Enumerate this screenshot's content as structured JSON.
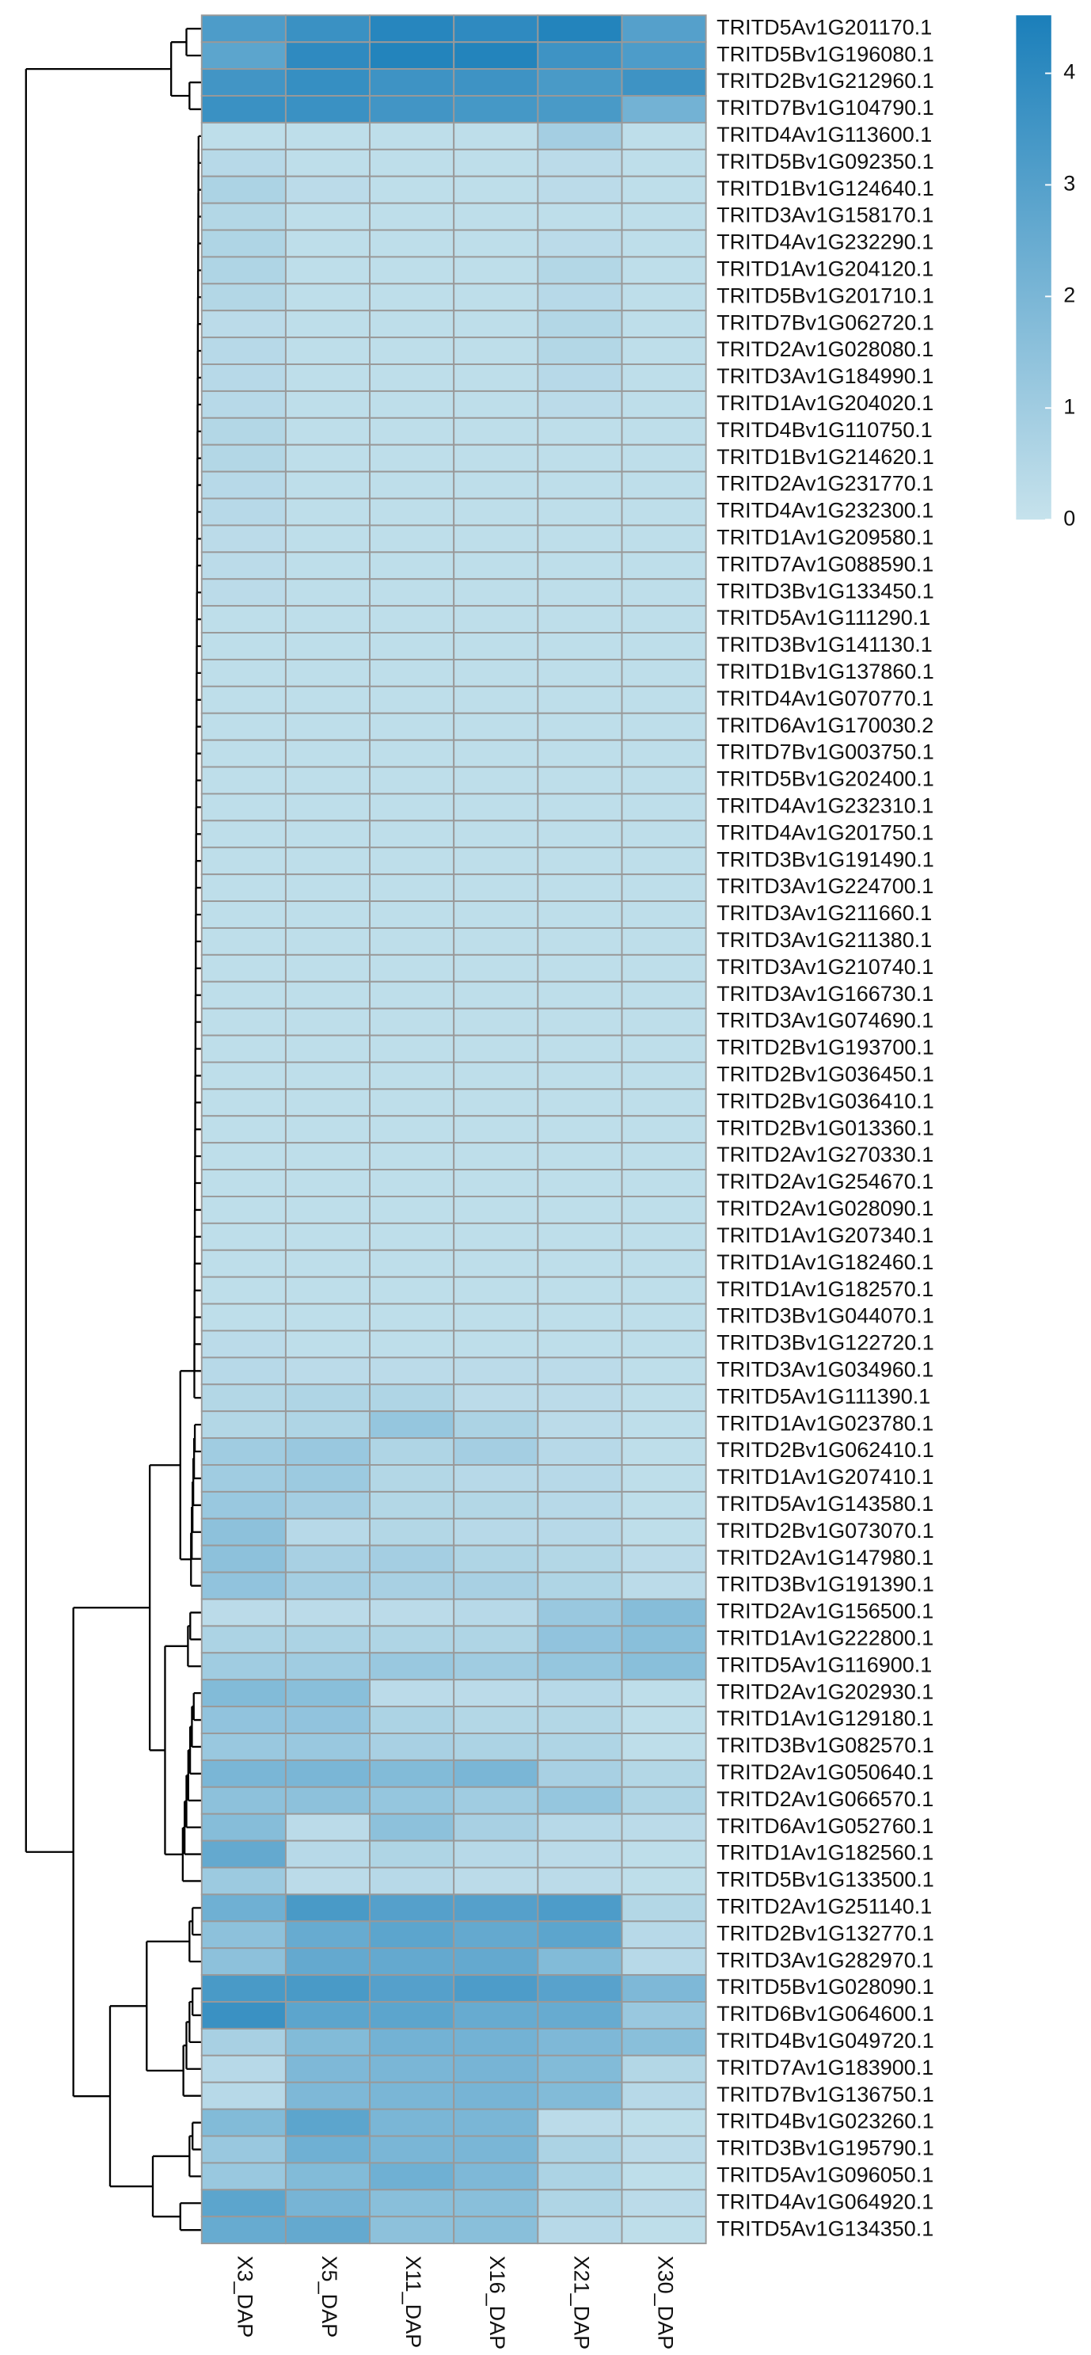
{
  "chart_data": {
    "type": "heatmap",
    "rows": [
      "TRITD5Av1G201170.1",
      "TRITD5Bv1G196080.1",
      "TRITD2Bv1G212960.1",
      "TRITD7Bv1G104790.1",
      "TRITD4Av1G113600.1",
      "TRITD5Bv1G092350.1",
      "TRITD1Bv1G124640.1",
      "TRITD3Av1G158170.1",
      "TRITD4Av1G232290.1",
      "TRITD1Av1G204120.1",
      "TRITD5Bv1G201710.1",
      "TRITD7Bv1G062720.1",
      "TRITD2Av1G028080.1",
      "TRITD3Av1G184990.1",
      "TRITD1Av1G204020.1",
      "TRITD4Bv1G110750.1",
      "TRITD1Bv1G214620.1",
      "TRITD2Av1G231770.1",
      "TRITD4Av1G232300.1",
      "TRITD1Av1G209580.1",
      "TRITD7Av1G088590.1",
      "TRITD3Bv1G133450.1",
      "TRITD5Av1G111290.1",
      "TRITD3Bv1G141130.1",
      "TRITD1Bv1G137860.1",
      "TRITD4Av1G070770.1",
      "TRITD6Av1G170030.2",
      "TRITD7Bv1G003750.1",
      "TRITD5Bv1G202400.1",
      "TRITD4Av1G232310.1",
      "TRITD4Av1G201750.1",
      "TRITD3Bv1G191490.1",
      "TRITD3Av1G224700.1",
      "TRITD3Av1G211660.1",
      "TRITD3Av1G211380.1",
      "TRITD3Av1G210740.1",
      "TRITD3Av1G166730.1",
      "TRITD3Av1G074690.1",
      "TRITD2Bv1G193700.1",
      "TRITD2Bv1G036450.1",
      "TRITD2Bv1G036410.1",
      "TRITD2Bv1G013360.1",
      "TRITD2Av1G270330.1",
      "TRITD2Av1G254670.1",
      "TRITD2Av1G028090.1",
      "TRITD1Av1G207340.1",
      "TRITD1Av1G182460.1",
      "TRITD1Av1G182570.1",
      "TRITD3Bv1G044070.1",
      "TRITD3Bv1G122720.1",
      "TRITD3Av1G034960.1",
      "TRITD5Av1G111390.1",
      "TRITD1Av1G023780.1",
      "TRITD2Bv1G062410.1",
      "TRITD1Av1G207410.1",
      "TRITD5Av1G143580.1",
      "TRITD2Bv1G073070.1",
      "TRITD2Av1G147980.1",
      "TRITD3Bv1G191390.1",
      "TRITD2Av1G156500.1",
      "TRITD1Av1G222800.1",
      "TRITD5Av1G116900.1",
      "TRITD2Av1G202930.1",
      "TRITD1Av1G129180.1",
      "TRITD3Bv1G082570.1",
      "TRITD2Av1G050640.1",
      "TRITD2Av1G066570.1",
      "TRITD6Av1G052760.1",
      "TRITD1Av1G182560.1",
      "TRITD5Bv1G133500.1",
      "TRITD2Av1G251140.1",
      "TRITD2Bv1G132770.1",
      "TRITD3Av1G282970.1",
      "TRITD5Bv1G028090.1",
      "TRITD6Bv1G064600.1",
      "TRITD4Bv1G049720.1",
      "TRITD7Av1G183900.1",
      "TRITD7Bv1G136750.1",
      "TRITD4Bv1G023260.1",
      "TRITD3Bv1G195790.1",
      "TRITD5Av1G096050.1",
      "TRITD4Av1G064920.1",
      "TRITD5Av1G134350.1"
    ],
    "columns": [
      "X3_DAP",
      "X5_DAP",
      "X11_DAP",
      "X16_DAP",
      "X21_DAP",
      "X30_DAP"
    ],
    "values": [
      [
        3.2,
        3.7,
        4.2,
        4.0,
        4.3,
        3.0
      ],
      [
        2.8,
        4.0,
        4.3,
        4.3,
        3.6,
        3.2
      ],
      [
        3.5,
        3.8,
        3.6,
        3.6,
        3.3,
        3.6
      ],
      [
        3.7,
        3.7,
        3.5,
        3.4,
        3.3,
        2.2
      ],
      [
        0.2,
        0.2,
        0.2,
        0.2,
        0.9,
        0.2
      ],
      [
        0.4,
        0.2,
        0.2,
        0.2,
        0.3,
        0.2
      ],
      [
        0.7,
        0.3,
        0.2,
        0.2,
        0.3,
        0.2
      ],
      [
        0.5,
        0.2,
        0.2,
        0.2,
        0.2,
        0.2
      ],
      [
        0.6,
        0.2,
        0.2,
        0.2,
        0.3,
        0.2
      ],
      [
        0.6,
        0.2,
        0.2,
        0.2,
        0.5,
        0.2
      ],
      [
        0.5,
        0.2,
        0.2,
        0.2,
        0.4,
        0.2
      ],
      [
        0.3,
        0.2,
        0.2,
        0.2,
        0.5,
        0.2
      ],
      [
        0.4,
        0.2,
        0.2,
        0.2,
        0.5,
        0.2
      ],
      [
        0.4,
        0.2,
        0.2,
        0.2,
        0.4,
        0.2
      ],
      [
        0.4,
        0.2,
        0.2,
        0.2,
        0.3,
        0.2
      ],
      [
        0.5,
        0.2,
        0.2,
        0.2,
        0.2,
        0.2
      ],
      [
        0.5,
        0.2,
        0.2,
        0.2,
        0.2,
        0.2
      ],
      [
        0.4,
        0.2,
        0.2,
        0.2,
        0.2,
        0.2
      ],
      [
        0.4,
        0.2,
        0.2,
        0.2,
        0.2,
        0.2
      ],
      [
        0.3,
        0.2,
        0.2,
        0.2,
        0.2,
        0.2
      ],
      [
        0.3,
        0.2,
        0.2,
        0.2,
        0.2,
        0.2
      ],
      [
        0.3,
        0.2,
        0.2,
        0.2,
        0.2,
        0.2
      ],
      [
        0.2,
        0.2,
        0.2,
        0.2,
        0.2,
        0.2
      ],
      [
        0.2,
        0.2,
        0.2,
        0.2,
        0.2,
        0.2
      ],
      [
        0.2,
        0.2,
        0.2,
        0.2,
        0.2,
        0.2
      ],
      [
        0.2,
        0.2,
        0.2,
        0.2,
        0.2,
        0.2
      ],
      [
        0.2,
        0.2,
        0.2,
        0.2,
        0.2,
        0.2
      ],
      [
        0.2,
        0.2,
        0.2,
        0.2,
        0.2,
        0.2
      ],
      [
        0.2,
        0.2,
        0.2,
        0.2,
        0.2,
        0.2
      ],
      [
        0.2,
        0.2,
        0.2,
        0.2,
        0.2,
        0.2
      ],
      [
        0.2,
        0.2,
        0.2,
        0.2,
        0.2,
        0.2
      ],
      [
        0.2,
        0.2,
        0.2,
        0.2,
        0.2,
        0.2
      ],
      [
        0.2,
        0.2,
        0.2,
        0.2,
        0.2,
        0.2
      ],
      [
        0.2,
        0.2,
        0.2,
        0.2,
        0.2,
        0.2
      ],
      [
        0.2,
        0.2,
        0.2,
        0.2,
        0.2,
        0.2
      ],
      [
        0.2,
        0.2,
        0.2,
        0.2,
        0.2,
        0.2
      ],
      [
        0.2,
        0.2,
        0.2,
        0.2,
        0.2,
        0.2
      ],
      [
        0.2,
        0.2,
        0.2,
        0.2,
        0.2,
        0.2
      ],
      [
        0.2,
        0.2,
        0.2,
        0.2,
        0.2,
        0.2
      ],
      [
        0.2,
        0.2,
        0.2,
        0.2,
        0.2,
        0.2
      ],
      [
        0.2,
        0.2,
        0.2,
        0.2,
        0.2,
        0.2
      ],
      [
        0.2,
        0.2,
        0.2,
        0.2,
        0.2,
        0.2
      ],
      [
        0.2,
        0.2,
        0.2,
        0.2,
        0.2,
        0.2
      ],
      [
        0.2,
        0.2,
        0.2,
        0.2,
        0.2,
        0.2
      ],
      [
        0.2,
        0.2,
        0.2,
        0.2,
        0.2,
        0.2
      ],
      [
        0.2,
        0.2,
        0.2,
        0.2,
        0.2,
        0.2
      ],
      [
        0.2,
        0.2,
        0.2,
        0.2,
        0.2,
        0.2
      ],
      [
        0.2,
        0.2,
        0.2,
        0.2,
        0.2,
        0.2
      ],
      [
        0.2,
        0.2,
        0.2,
        0.2,
        0.2,
        0.2
      ],
      [
        0.3,
        0.2,
        0.2,
        0.2,
        0.2,
        0.2
      ],
      [
        0.4,
        0.3,
        0.3,
        0.3,
        0.3,
        0.2
      ],
      [
        0.5,
        0.6,
        0.6,
        0.3,
        0.3,
        0.2
      ],
      [
        0.5,
        0.6,
        1.3,
        0.7,
        0.3,
        0.2
      ],
      [
        1.0,
        1.2,
        0.6,
        0.9,
        0.4,
        0.2
      ],
      [
        1.0,
        1.1,
        0.5,
        0.4,
        0.4,
        0.2
      ],
      [
        1.2,
        0.9,
        0.5,
        0.5,
        0.4,
        0.2
      ],
      [
        1.5,
        0.4,
        0.5,
        0.4,
        0.4,
        0.2
      ],
      [
        1.5,
        0.8,
        0.9,
        0.6,
        0.5,
        0.3
      ],
      [
        1.4,
        0.9,
        0.8,
        0.8,
        0.6,
        0.3
      ],
      [
        0.3,
        0.3,
        0.3,
        0.4,
        1.2,
        1.7
      ],
      [
        0.7,
        0.7,
        0.6,
        0.6,
        1.4,
        1.6
      ],
      [
        1.0,
        1.0,
        1.2,
        1.0,
        1.3,
        1.6
      ],
      [
        1.8,
        1.6,
        0.3,
        0.3,
        0.4,
        0.2
      ],
      [
        1.4,
        1.4,
        0.7,
        0.5,
        0.5,
        0.2
      ],
      [
        1.2,
        1.2,
        0.8,
        0.7,
        0.6,
        0.2
      ],
      [
        2.0,
        2.0,
        1.8,
        2.0,
        0.8,
        0.5
      ],
      [
        1.5,
        1.5,
        1.3,
        1.0,
        1.3,
        0.6
      ],
      [
        1.7,
        0.3,
        1.5,
        0.8,
        0.4,
        0.3
      ],
      [
        2.6,
        0.4,
        0.6,
        0.4,
        0.3,
        0.2
      ],
      [
        1.1,
        0.3,
        0.4,
        0.3,
        0.3,
        0.2
      ],
      [
        2.3,
        3.3,
        3.0,
        3.0,
        3.2,
        0.5
      ],
      [
        1.5,
        2.5,
        2.8,
        2.6,
        2.8,
        0.4
      ],
      [
        1.5,
        2.6,
        2.6,
        2.6,
        1.8,
        0.4
      ],
      [
        3.3,
        3.3,
        3.0,
        3.2,
        2.9,
        1.9
      ],
      [
        3.7,
        2.8,
        2.8,
        2.5,
        2.5,
        1.2
      ],
      [
        0.8,
        1.8,
        2.2,
        2.2,
        1.9,
        1.6
      ],
      [
        0.4,
        1.9,
        2.0,
        2.1,
        1.8,
        0.5
      ],
      [
        0.4,
        1.9,
        2.0,
        2.1,
        1.8,
        0.4
      ],
      [
        1.8,
        2.8,
        2.0,
        2.0,
        0.3,
        0.2
      ],
      [
        1.2,
        2.3,
        2.0,
        2.0,
        0.7,
        0.3
      ],
      [
        1.2,
        1.8,
        2.3,
        1.9,
        0.7,
        0.2
      ],
      [
        2.8,
        2.1,
        1.6,
        1.6,
        0.6,
        0.3
      ],
      [
        2.5,
        2.6,
        1.5,
        1.6,
        0.4,
        0.2
      ]
    ],
    "colors": [
      "#c6e2ec",
      "#1b7fba"
    ],
    "clim": [
      0,
      4.52
    ],
    "cticks": [
      0,
      1,
      2,
      3,
      4
    ]
  }
}
